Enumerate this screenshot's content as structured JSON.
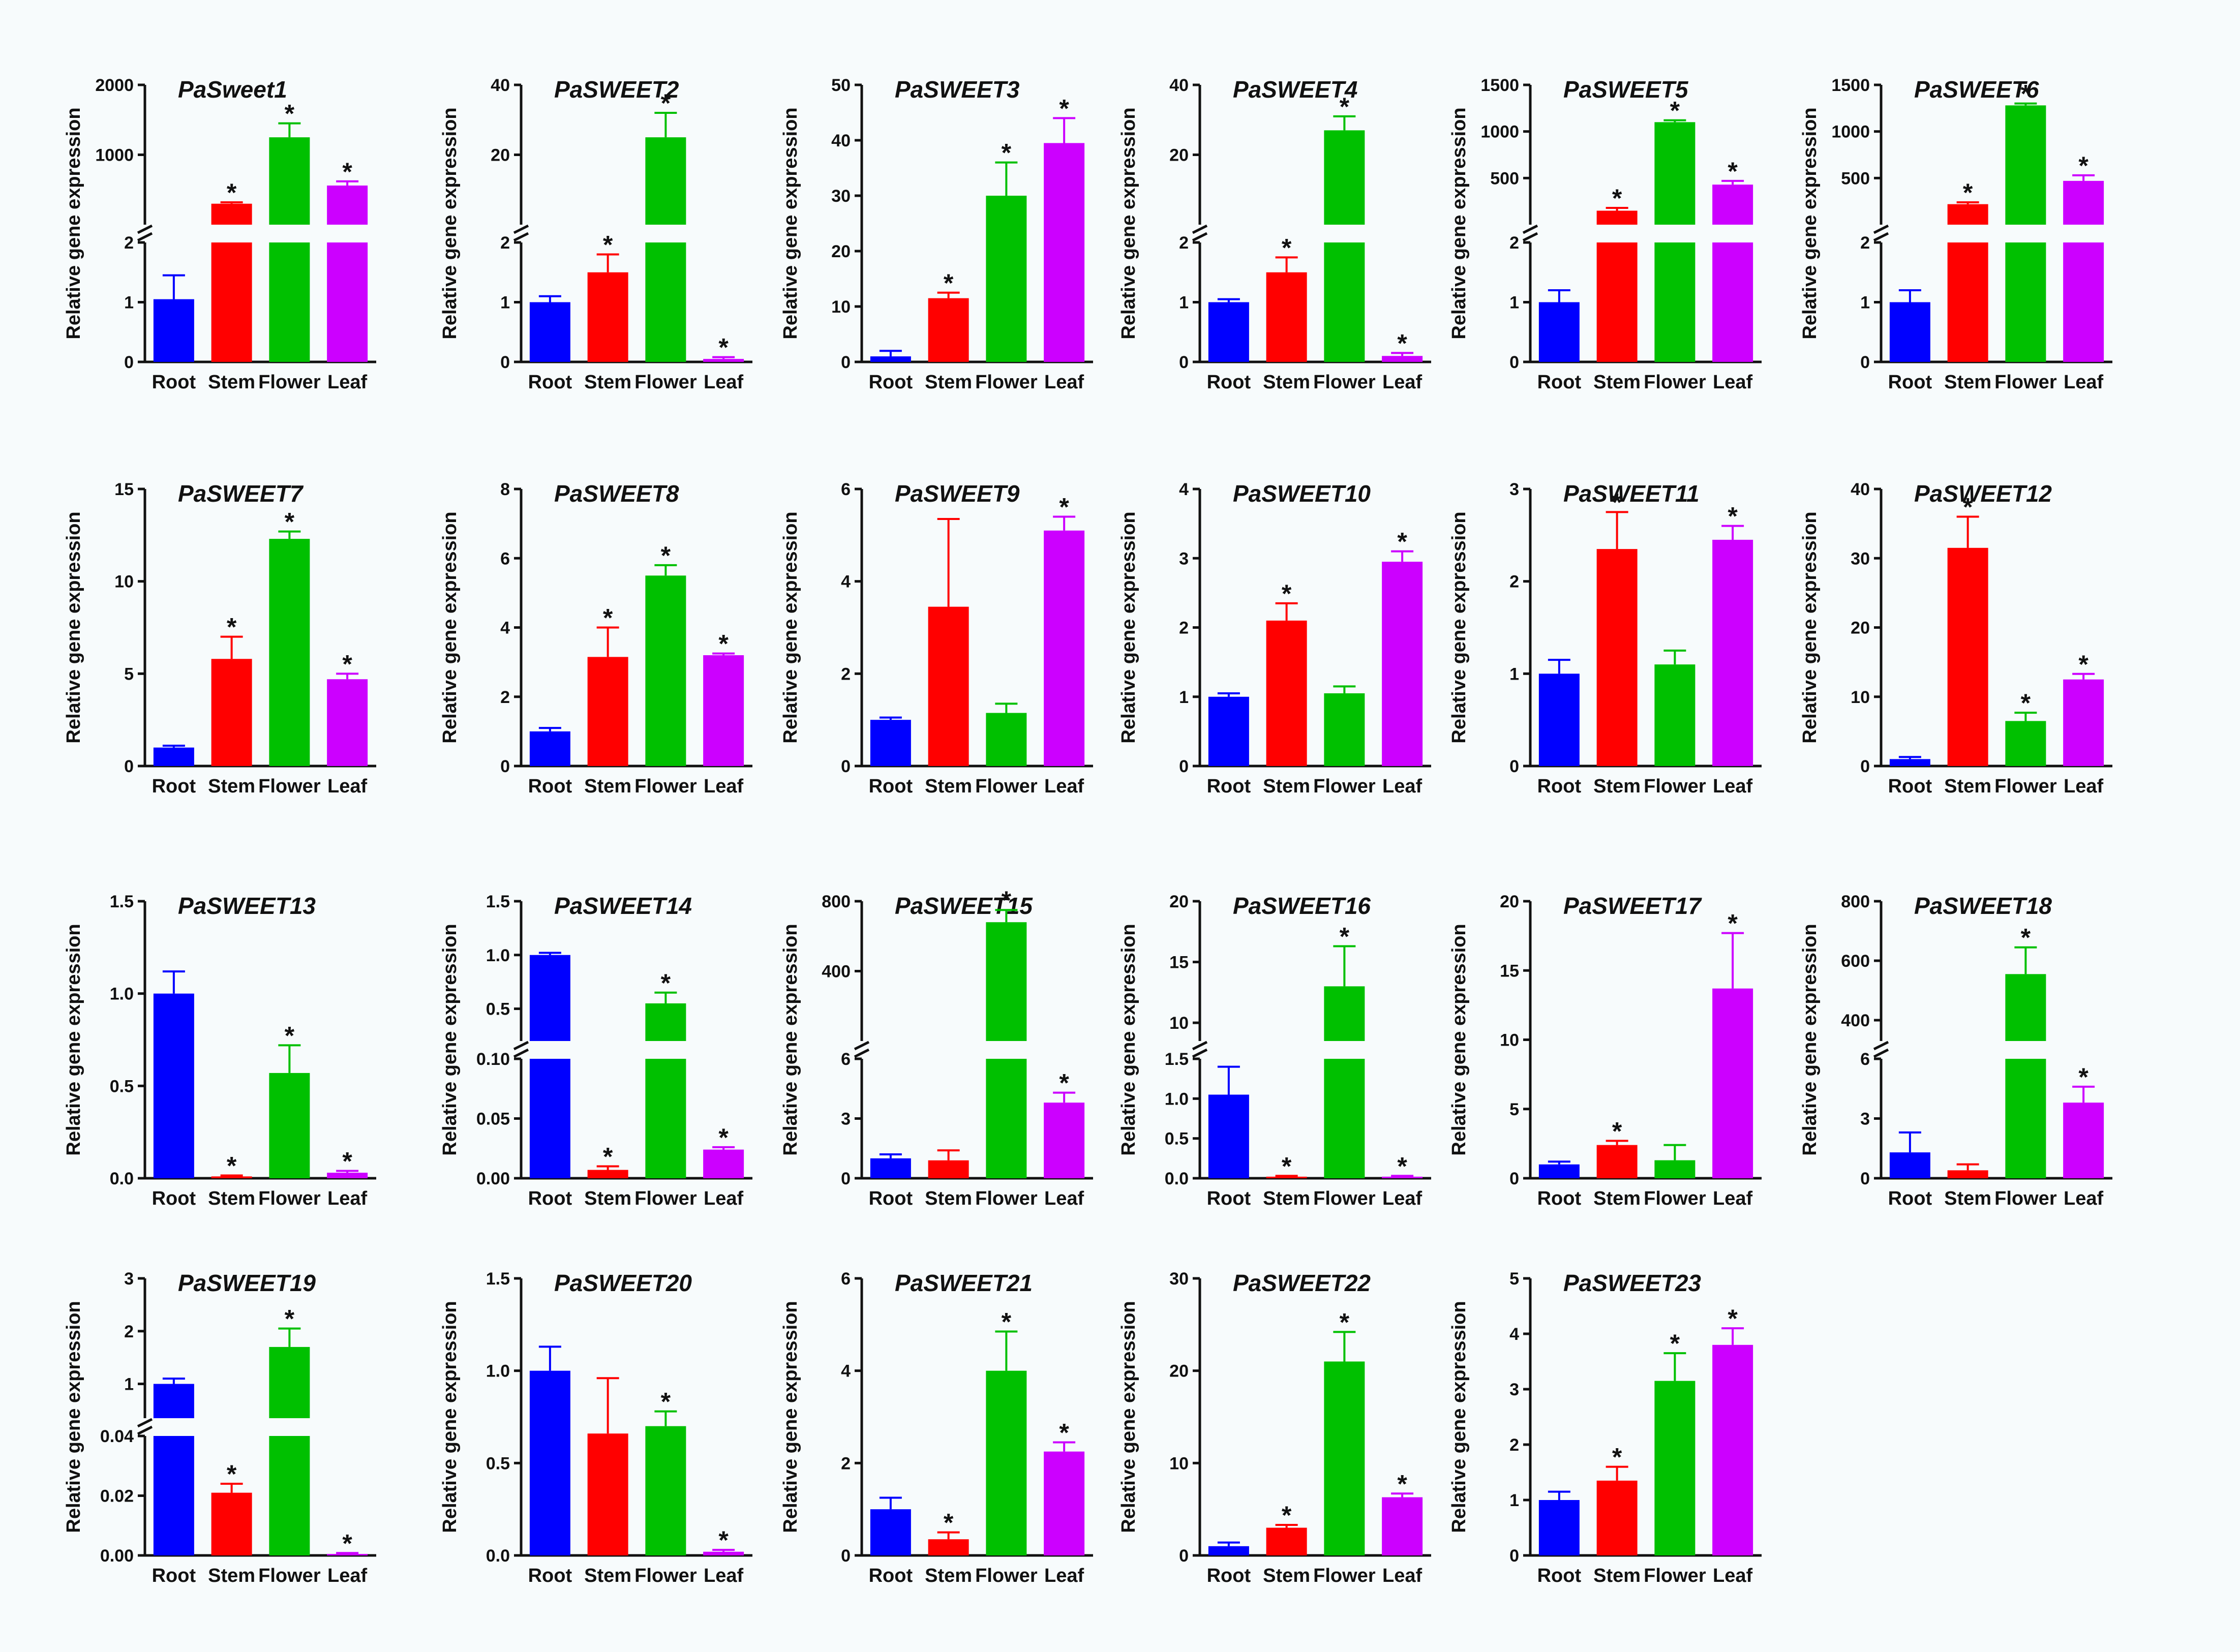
{
  "colors": {
    "Root": "#0000ff",
    "Stem": "#ff0000",
    "Flower": "#00c000",
    "Leaf": "#cc00ff",
    "axis": "#111111"
  },
  "chart_data": [
    {
      "title": "PaSweet1",
      "type": "bar",
      "ylabel": "Relative gene expression",
      "categories": [
        "Root",
        "Stem",
        "Flower",
        "Leaf"
      ],
      "values": [
        1.05,
        300,
        1250,
        560
      ],
      "errors": [
        0.4,
        20,
        200,
        60
      ],
      "significant": [
        false,
        true,
        true,
        true
      ],
      "axis_break": {
        "lower": [
          0,
          2
        ],
        "upper": [
          0,
          2000
        ],
        "lower_ticks": [
          "0",
          "1",
          "2"
        ],
        "upper_ticks": [
          "1000",
          "2000"
        ]
      }
    },
    {
      "title": "PaSWEET2",
      "type": "bar",
      "ylabel": "Relative gene expression",
      "categories": [
        "Root",
        "Stem",
        "Flower",
        "Leaf"
      ],
      "values": [
        1.0,
        1.5,
        25,
        0.05
      ],
      "errors": [
        0.1,
        0.3,
        7,
        0.03
      ],
      "significant": [
        false,
        true,
        true,
        true
      ],
      "axis_break": {
        "lower": [
          0,
          2
        ],
        "upper": [
          0,
          40
        ],
        "lower_ticks": [
          "0",
          "1",
          "2"
        ],
        "upper_ticks": [
          "20",
          "40"
        ]
      }
    },
    {
      "title": "PaSWEET3",
      "type": "bar",
      "ylabel": "Relative gene expression",
      "categories": [
        "Root",
        "Stem",
        "Flower",
        "Leaf"
      ],
      "values": [
        1.0,
        11.5,
        30,
        39.5
      ],
      "errors": [
        1.0,
        1.0,
        6,
        4.5
      ],
      "significant": [
        false,
        true,
        true,
        true
      ],
      "ylim": [
        0,
        50
      ],
      "yticks": [
        "0",
        "10",
        "20",
        "30",
        "40",
        "50"
      ]
    },
    {
      "title": "PaSWEET4",
      "type": "bar",
      "ylabel": "Relative gene expression",
      "categories": [
        "Root",
        "Stem",
        "Flower",
        "Leaf"
      ],
      "values": [
        1.0,
        1.5,
        27,
        0.1
      ],
      "errors": [
        0.05,
        0.25,
        4,
        0.05
      ],
      "significant": [
        false,
        true,
        true,
        true
      ],
      "axis_break": {
        "lower": [
          0,
          2
        ],
        "upper": [
          0,
          40
        ],
        "lower_ticks": [
          "0",
          "1",
          "2"
        ],
        "upper_ticks": [
          "20",
          "40"
        ]
      }
    },
    {
      "title": "PaSWEET5",
      "type": "bar",
      "ylabel": "Relative gene expression",
      "categories": [
        "Root",
        "Stem",
        "Flower",
        "Leaf"
      ],
      "values": [
        1.0,
        150,
        1100,
        430
      ],
      "errors": [
        0.2,
        30,
        20,
        40
      ],
      "significant": [
        false,
        true,
        true,
        true
      ],
      "axis_break": {
        "lower": [
          0,
          2
        ],
        "upper": [
          0,
          1500
        ],
        "lower_ticks": [
          "0",
          "1",
          "2"
        ],
        "upper_ticks": [
          "500",
          "1000",
          "1500"
        ]
      }
    },
    {
      "title": "PaSWEET6",
      "type": "bar",
      "ylabel": "Relative gene expression",
      "categories": [
        "Root",
        "Stem",
        "Flower",
        "Leaf"
      ],
      "values": [
        1.0,
        220,
        1280,
        470
      ],
      "errors": [
        0.2,
        20,
        20,
        60
      ],
      "significant": [
        false,
        true,
        true,
        true
      ],
      "axis_break": {
        "lower": [
          0,
          2
        ],
        "upper": [
          0,
          1500
        ],
        "lower_ticks": [
          "0",
          "1",
          "2"
        ],
        "upper_ticks": [
          "500",
          "1000",
          "1500"
        ]
      }
    },
    {
      "title": "PaSWEET7",
      "type": "bar",
      "ylabel": "Relative gene expression",
      "categories": [
        "Root",
        "Stem",
        "Flower",
        "Leaf"
      ],
      "values": [
        1.0,
        5.8,
        12.3,
        4.7
      ],
      "errors": [
        0.1,
        1.2,
        0.4,
        0.3
      ],
      "significant": [
        false,
        true,
        true,
        true
      ],
      "ylim": [
        0,
        15
      ],
      "yticks": [
        "0",
        "5",
        "10",
        "15"
      ]
    },
    {
      "title": "PaSWEET8",
      "type": "bar",
      "ylabel": "Relative gene expression",
      "categories": [
        "Root",
        "Stem",
        "Flower",
        "Leaf"
      ],
      "values": [
        1.0,
        3.15,
        5.5,
        3.2
      ],
      "errors": [
        0.1,
        0.85,
        0.3,
        0.05
      ],
      "significant": [
        false,
        true,
        true,
        true
      ],
      "ylim": [
        0,
        8
      ],
      "yticks": [
        "0",
        "2",
        "4",
        "6",
        "8"
      ]
    },
    {
      "title": "PaSWEET9",
      "type": "bar",
      "ylabel": "Relative gene expression",
      "categories": [
        "Root",
        "Stem",
        "Flower",
        "Leaf"
      ],
      "values": [
        1.0,
        3.45,
        1.15,
        5.1
      ],
      "errors": [
        0.05,
        1.9,
        0.2,
        0.3
      ],
      "significant": [
        false,
        false,
        false,
        true
      ],
      "ylim": [
        0,
        6
      ],
      "yticks": [
        "0",
        "2",
        "4",
        "6"
      ]
    },
    {
      "title": "PaSWEET10",
      "type": "bar",
      "ylabel": "Relative gene expression",
      "categories": [
        "Root",
        "Stem",
        "Flower",
        "Leaf"
      ],
      "values": [
        1.0,
        2.1,
        1.05,
        2.95
      ],
      "errors": [
        0.05,
        0.25,
        0.1,
        0.15
      ],
      "significant": [
        false,
        true,
        false,
        true
      ],
      "ylim": [
        0,
        4
      ],
      "yticks": [
        "0",
        "1",
        "2",
        "3",
        "4"
      ]
    },
    {
      "title": "PaSWEET11",
      "type": "bar",
      "ylabel": "Relative gene expression",
      "categories": [
        "Root",
        "Stem",
        "Flower",
        "Leaf"
      ],
      "values": [
        1.0,
        2.35,
        1.1,
        2.45
      ],
      "errors": [
        0.15,
        0.4,
        0.15,
        0.15
      ],
      "significant": [
        false,
        true,
        false,
        true
      ],
      "ylim": [
        0,
        3
      ],
      "yticks": [
        "0",
        "1",
        "2",
        "3"
      ]
    },
    {
      "title": "PaSWEET12",
      "type": "bar",
      "ylabel": "Relative gene expression",
      "categories": [
        "Root",
        "Stem",
        "Flower",
        "Leaf"
      ],
      "values": [
        1.0,
        31.5,
        6.5,
        12.5
      ],
      "errors": [
        0.3,
        4.5,
        1.2,
        0.8
      ],
      "significant": [
        false,
        true,
        true,
        true
      ],
      "ylim": [
        0,
        40
      ],
      "yticks": [
        "0",
        "10",
        "20",
        "30",
        "40"
      ]
    },
    {
      "title": "PaSWEET13",
      "type": "bar",
      "ylabel": "Relative gene expression",
      "categories": [
        "Root",
        "Stem",
        "Flower",
        "Leaf"
      ],
      "values": [
        1.0,
        0.01,
        0.57,
        0.03
      ],
      "errors": [
        0.12,
        0.005,
        0.15,
        0.01
      ],
      "significant": [
        false,
        true,
        true,
        true
      ],
      "ylim": [
        0,
        1.5
      ],
      "yticks": [
        "0.0",
        "0.5",
        "1.0",
        "1.5"
      ]
    },
    {
      "title": "PaSWEET14",
      "type": "bar",
      "ylabel": "Relative gene expression",
      "categories": [
        "Root",
        "Stem",
        "Flower",
        "Leaf"
      ],
      "values": [
        1.0,
        0.007,
        0.55,
        0.024
      ],
      "errors": [
        0.02,
        0.003,
        0.1,
        0.002
      ],
      "significant": [
        false,
        true,
        true,
        true
      ],
      "axis_break": {
        "lower": [
          0,
          0.1
        ],
        "upper": [
          0.2,
          1.5
        ],
        "lower_ticks": [
          "0.00",
          "0.05",
          "0.10"
        ],
        "upper_ticks": [
          "0.5",
          "1.0",
          "1.5"
        ]
      }
    },
    {
      "title": "PaSWEET15",
      "type": "bar",
      "ylabel": "Relative gene expression",
      "categories": [
        "Root",
        "Stem",
        "Flower",
        "Leaf"
      ],
      "values": [
        1.0,
        0.9,
        680,
        3.8
      ],
      "errors": [
        0.2,
        0.5,
        70,
        0.5
      ],
      "significant": [
        false,
        false,
        true,
        true
      ],
      "axis_break": {
        "lower": [
          0,
          6
        ],
        "upper": [
          0,
          800
        ],
        "lower_ticks": [
          "0",
          "3",
          "6"
        ],
        "upper_ticks": [
          "400",
          "800"
        ]
      }
    },
    {
      "title": "PaSWEET16",
      "type": "bar",
      "ylabel": "Relative gene expression",
      "categories": [
        "Root",
        "Stem",
        "Flower",
        "Leaf"
      ],
      "values": [
        1.05,
        0.02,
        13,
        0.02
      ],
      "errors": [
        0.35,
        0.01,
        3.3,
        0.01
      ],
      "significant": [
        false,
        true,
        true,
        true
      ],
      "axis_break": {
        "lower": [
          0,
          1.5
        ],
        "upper": [
          8.5,
          20
        ],
        "lower_ticks": [
          "0.0",
          "0.5",
          "1.0",
          "1.5"
        ],
        "upper_ticks": [
          "10",
          "15",
          "20"
        ]
      }
    },
    {
      "title": "PaSWEET17",
      "type": "bar",
      "ylabel": "Relative gene expression",
      "categories": [
        "Root",
        "Stem",
        "Flower",
        "Leaf"
      ],
      "values": [
        1.0,
        2.4,
        1.3,
        13.7
      ],
      "errors": [
        0.2,
        0.3,
        1.1,
        4.0
      ],
      "significant": [
        false,
        true,
        false,
        true
      ],
      "ylim": [
        0,
        20
      ],
      "yticks": [
        "0",
        "5",
        "10",
        "15",
        "20"
      ]
    },
    {
      "title": "PaSWEET18",
      "type": "bar",
      "ylabel": "Relative gene expression",
      "categories": [
        "Root",
        "Stem",
        "Flower",
        "Leaf"
      ],
      "values": [
        1.3,
        0.4,
        555,
        3.8
      ],
      "errors": [
        1.0,
        0.3,
        90,
        0.8
      ],
      "significant": [
        false,
        false,
        true,
        true
      ],
      "axis_break": {
        "lower": [
          0,
          6
        ],
        "upper": [
          330,
          800
        ],
        "lower_ticks": [
          "0",
          "3",
          "6"
        ],
        "upper_ticks": [
          "400",
          "600",
          "800"
        ]
      }
    },
    {
      "title": "PaSWEET19",
      "type": "bar",
      "ylabel": "Relative gene expression",
      "categories": [
        "Root",
        "Stem",
        "Flower",
        "Leaf"
      ],
      "values": [
        1.0,
        0.021,
        1.7,
        0.0005
      ],
      "errors": [
        0.1,
        0.003,
        0.35,
        0.0003
      ],
      "significant": [
        false,
        true,
        true,
        true
      ],
      "axis_break": {
        "lower": [
          0,
          0.04
        ],
        "upper": [
          0.35,
          3
        ],
        "lower_ticks": [
          "0.00",
          "0.02",
          "0.04"
        ],
        "upper_ticks": [
          "1",
          "2",
          "3"
        ]
      }
    },
    {
      "title": "PaSWEET20",
      "type": "bar",
      "ylabel": "Relative gene expression",
      "categories": [
        "Root",
        "Stem",
        "Flower",
        "Leaf"
      ],
      "values": [
        1.0,
        0.66,
        0.7,
        0.02
      ],
      "errors": [
        0.13,
        0.3,
        0.08,
        0.01
      ],
      "significant": [
        false,
        false,
        true,
        true
      ],
      "ylim": [
        0,
        1.5
      ],
      "yticks": [
        "0.0",
        "0.5",
        "1.0",
        "1.5"
      ]
    },
    {
      "title": "PaSWEET21",
      "type": "bar",
      "ylabel": "Relative gene expression",
      "categories": [
        "Root",
        "Stem",
        "Flower",
        "Leaf"
      ],
      "values": [
        1.0,
        0.35,
        4.0,
        2.25
      ],
      "errors": [
        0.25,
        0.15,
        0.85,
        0.2
      ],
      "significant": [
        false,
        true,
        true,
        true
      ],
      "ylim": [
        0,
        6
      ],
      "yticks": [
        "0",
        "2",
        "4",
        "6"
      ]
    },
    {
      "title": "PaSWEET22",
      "type": "bar",
      "ylabel": "Relative gene expression",
      "categories": [
        "Root",
        "Stem",
        "Flower",
        "Leaf"
      ],
      "values": [
        1.0,
        3.0,
        21,
        6.3
      ],
      "errors": [
        0.4,
        0.3,
        3.2,
        0.4
      ],
      "significant": [
        false,
        true,
        true,
        true
      ],
      "ylim": [
        0,
        30
      ],
      "yticks": [
        "0",
        "10",
        "20",
        "30"
      ]
    },
    {
      "title": "PaSWEET23",
      "type": "bar",
      "ylabel": "Relative gene expression",
      "categories": [
        "Root",
        "Stem",
        "Flower",
        "Leaf"
      ],
      "values": [
        1.0,
        1.35,
        3.15,
        3.8
      ],
      "errors": [
        0.15,
        0.25,
        0.5,
        0.3
      ],
      "significant": [
        false,
        true,
        true,
        true
      ],
      "ylim": [
        0,
        5
      ],
      "yticks": [
        "0",
        "1",
        "2",
        "3",
        "4",
        "5"
      ]
    }
  ]
}
